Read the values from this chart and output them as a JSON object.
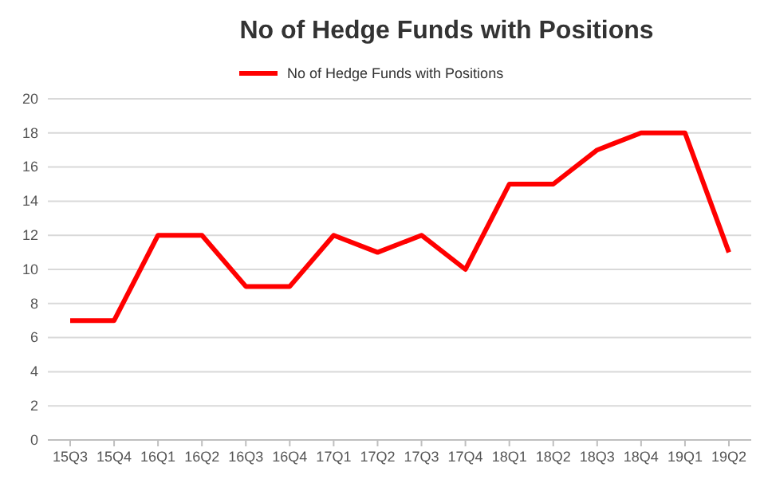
{
  "chart_data": {
    "type": "line",
    "title": "No of Hedge Funds with Positions",
    "categories": [
      "15Q3",
      "15Q4",
      "16Q1",
      "16Q2",
      "16Q3",
      "16Q4",
      "17Q1",
      "17Q2",
      "17Q3",
      "17Q4",
      "18Q1",
      "18Q2",
      "18Q3",
      "18Q4",
      "19Q1",
      "19Q2"
    ],
    "series": [
      {
        "name": "No of Hedge Funds with Positions",
        "color": "#ff0000",
        "values": [
          7,
          7,
          12,
          12,
          9,
          9,
          12,
          11,
          12,
          10,
          15,
          15,
          17,
          18,
          18,
          11
        ]
      }
    ],
    "ylim": [
      0,
      20
    ],
    "yticks": [
      0,
      2,
      4,
      6,
      8,
      10,
      12,
      14,
      16,
      18,
      20
    ],
    "grid": "y",
    "legend": "top",
    "marker": "none"
  }
}
